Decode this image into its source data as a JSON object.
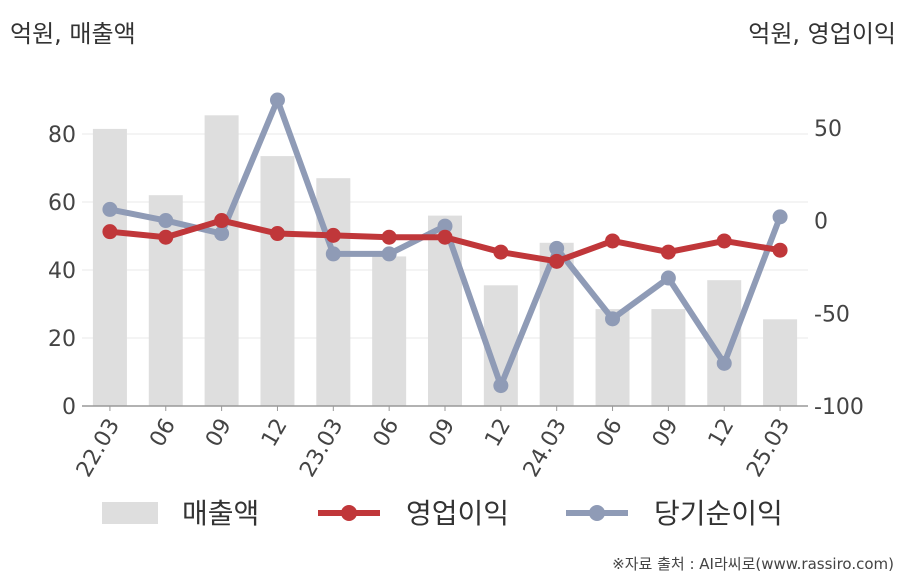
{
  "chart_data": {
    "type": "bar+line",
    "categories": [
      "22.03",
      "06",
      "09",
      "12",
      "23.03",
      "06",
      "09",
      "12",
      "24.03",
      "06",
      "09",
      "12",
      "25.03"
    ],
    "y_left_label": "억원, 매출액",
    "y_right_label": "억원, 영업이익",
    "y_left_range": [
      0,
      90
    ],
    "y_left_ticks": [
      0,
      20,
      40,
      60,
      80
    ],
    "y_right_range": [
      -100,
      65
    ],
    "y_right_ticks": [
      -100,
      -50,
      0,
      50
    ],
    "grid": true,
    "legend_position": "bottom",
    "series": [
      {
        "name": "매출액",
        "type": "bar",
        "axis": "left",
        "color": "#dedede",
        "values": [
          81.5,
          62,
          85.5,
          73.5,
          67,
          44,
          56,
          35.5,
          48,
          28.5,
          28.5,
          37,
          25.5
        ]
      },
      {
        "name": "영업이익",
        "type": "line",
        "axis": "right",
        "color": "#c0373a",
        "values": [
          -6,
          -9,
          0,
          -7,
          -8,
          -9,
          -9,
          -17,
          -22,
          -11,
          -17,
          -11,
          -16
        ]
      },
      {
        "name": "당기순이익",
        "type": "line",
        "axis": "right",
        "color": "#8f9bb6",
        "values": [
          6,
          0,
          -7,
          65,
          -18,
          -18,
          -3,
          -89,
          -15,
          -53,
          -31,
          -77,
          2
        ]
      }
    ]
  },
  "source": "※자료 출처 : AI라씨로(www.rassiro.com)"
}
